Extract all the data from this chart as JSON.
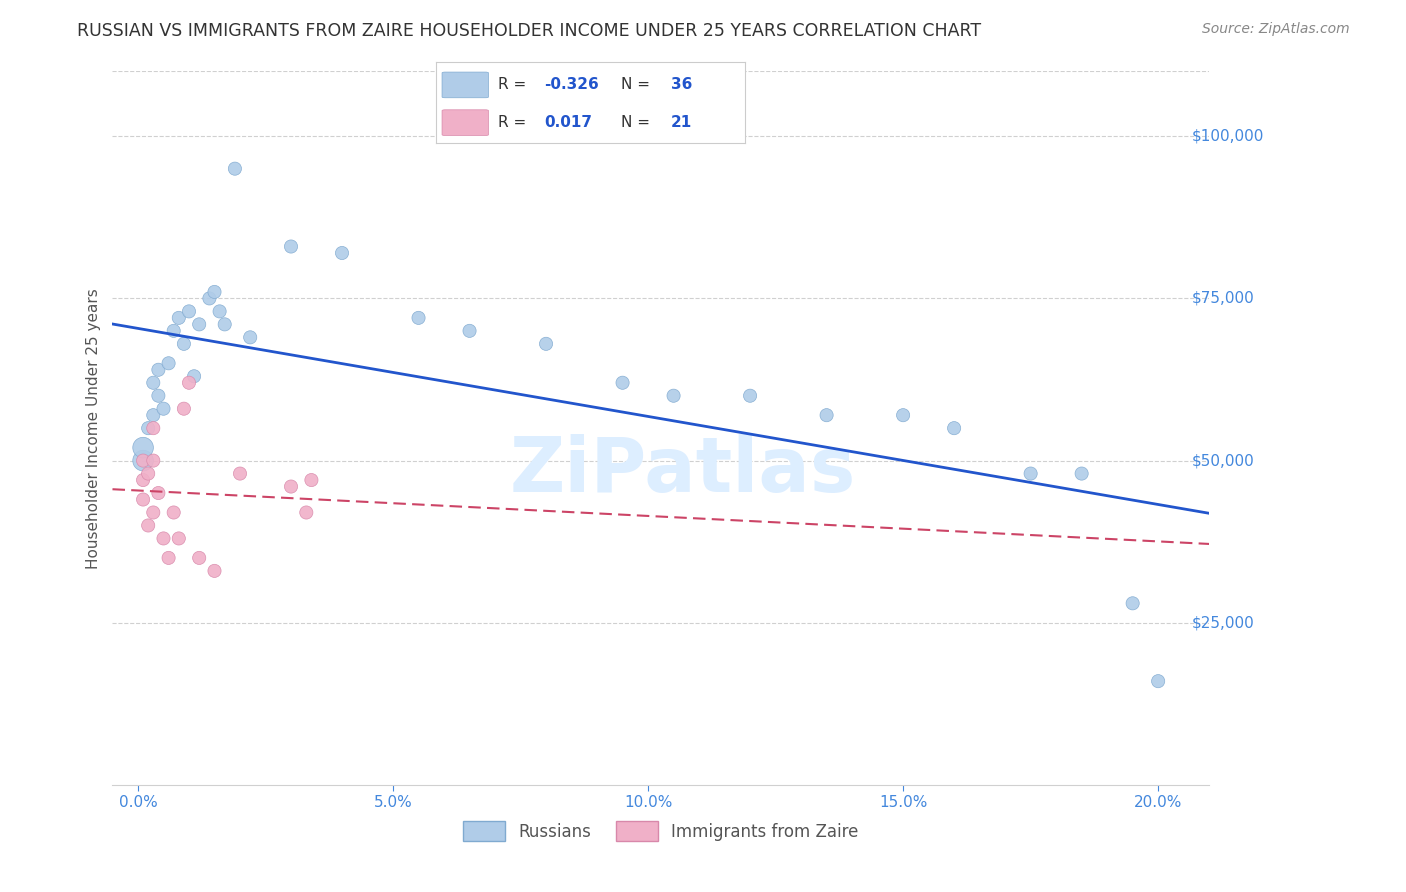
{
  "title": "RUSSIAN VS IMMIGRANTS FROM ZAIRE HOUSEHOLDER INCOME UNDER 25 YEARS CORRELATION CHART",
  "source": "Source: ZipAtlas.com",
  "ylabel": "Householder Income Under 25 years",
  "watermark": "ZiPatlas",
  "russians_x": [
    0.001,
    0.001,
    0.002,
    0.003,
    0.003,
    0.004,
    0.004,
    0.005,
    0.006,
    0.007,
    0.008,
    0.009,
    0.01,
    0.011,
    0.012,
    0.014,
    0.015,
    0.016,
    0.017,
    0.019,
    0.022,
    0.03,
    0.04,
    0.055,
    0.065,
    0.08,
    0.095,
    0.105,
    0.12,
    0.135,
    0.15,
    0.16,
    0.175,
    0.185,
    0.195,
    0.2
  ],
  "russians_y": [
    50000,
    52000,
    55000,
    57000,
    62000,
    60000,
    64000,
    58000,
    65000,
    70000,
    72000,
    68000,
    73000,
    63000,
    71000,
    75000,
    76000,
    73000,
    71000,
    95000,
    69000,
    83000,
    82000,
    72000,
    70000,
    68000,
    62000,
    60000,
    60000,
    57000,
    57000,
    55000,
    48000,
    48000,
    28000,
    16000
  ],
  "zaire_x": [
    0.001,
    0.001,
    0.001,
    0.002,
    0.002,
    0.003,
    0.003,
    0.003,
    0.004,
    0.005,
    0.006,
    0.007,
    0.008,
    0.009,
    0.01,
    0.012,
    0.015,
    0.02,
    0.03,
    0.033,
    0.034
  ],
  "zaire_y": [
    50000,
    47000,
    44000,
    48000,
    40000,
    55000,
    50000,
    42000,
    45000,
    38000,
    35000,
    42000,
    38000,
    58000,
    62000,
    35000,
    33000,
    48000,
    46000,
    42000,
    47000
  ],
  "blue_scatter_color": "#b0cce8",
  "blue_scatter_edge": "#80aad0",
  "pink_scatter_color": "#f0b0c8",
  "pink_scatter_edge": "#d888aa",
  "blue_line_color": "#2255cc",
  "pink_line_color": "#cc4466",
  "grid_color": "#d0d0d0",
  "right_label_color": "#4488dd",
  "bottom_label_color": "#4488dd",
  "legend_border_color": "#cccccc",
  "title_color": "#333333",
  "source_color": "#888888",
  "watermark_color": "#ddeeff",
  "ylabel_color": "#555555",
  "r_n_blue": "#2255cc",
  "r_n_dark": "#333333",
  "ytick_vals": [
    25000,
    50000,
    75000,
    100000
  ],
  "ytick_labels": [
    "$25,000",
    "$50,000",
    "$75,000",
    "$100,000"
  ],
  "xtick_vals": [
    0.0,
    0.05,
    0.1,
    0.15,
    0.2
  ],
  "xtick_labels": [
    "0.0%",
    "5.0%",
    "10.0%",
    "15.0%",
    "20.0%"
  ],
  "xlim": [
    -0.005,
    0.21
  ],
  "ylim": [
    0,
    110000
  ],
  "legend_r_russian": "-0.326",
  "legend_n_russian": "36",
  "legend_r_zaire": "0.017",
  "legend_n_zaire": "21",
  "bottom_legend_russian": "Russians",
  "bottom_legend_zaire": "Immigrants from Zaire"
}
